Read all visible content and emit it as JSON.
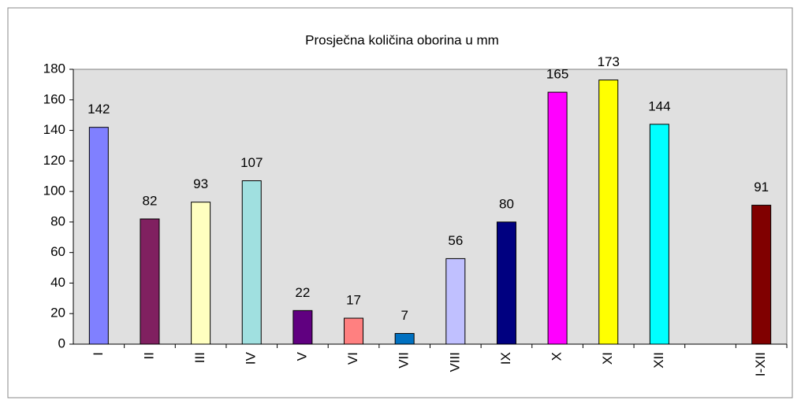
{
  "chart_data": {
    "type": "bar",
    "title": "Prosječna količina oborina u mm",
    "categories": [
      "I",
      "II",
      "III",
      "IV",
      "V",
      "VI",
      "VII",
      "VIII",
      "IX",
      "X",
      "XI",
      "XII",
      null,
      "I-XII"
    ],
    "values": [
      142,
      82,
      93,
      107,
      22,
      17,
      7,
      56,
      80,
      165,
      173,
      144,
      null,
      91
    ],
    "colors": [
      "#8080ff",
      "#802060",
      "#ffffc0",
      "#a0e0e0",
      "#600080",
      "#ff8080",
      "#0070c0",
      "#c0c0ff",
      "#000080",
      "#ff00ff",
      "#ffff00",
      "#00ffff",
      null,
      "#800000"
    ],
    "ylim": [
      0,
      180
    ],
    "yticks": [
      0,
      20,
      40,
      60,
      80,
      100,
      120,
      140,
      160,
      180
    ],
    "grid": false
  }
}
